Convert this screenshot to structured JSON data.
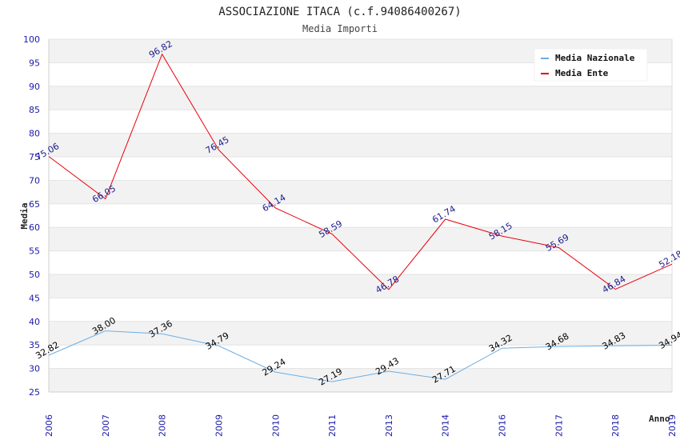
{
  "chart_data": {
    "type": "line",
    "title": "ASSOCIAZIONE ITACA (c.f.94086400267)",
    "subtitle": "Media Importi",
    "ylabel": "Media",
    "xlabel": "Anno",
    "ylim": [
      25,
      100
    ],
    "yticks": [
      25,
      30,
      35,
      40,
      45,
      50,
      55,
      60,
      65,
      70,
      75,
      80,
      85,
      90,
      95,
      100
    ],
    "categories": [
      "2006",
      "2007",
      "2008",
      "2009",
      "2010",
      "2011",
      "2013",
      "2014",
      "2016",
      "2017",
      "2018",
      "2019"
    ],
    "grid": "horizontal alternating bands",
    "legend_position": "top-right",
    "series": [
      {
        "name": "Media Nazionale",
        "color": "#6aaee6",
        "label_color": "#000000",
        "values": [
          32.82,
          38.0,
          37.36,
          34.79,
          29.24,
          27.19,
          29.43,
          27.71,
          34.32,
          34.68,
          34.83,
          34.94
        ],
        "labels": [
          "32.82",
          "38.00",
          "37.36",
          "34.79",
          "29.24",
          "27.19",
          "29.43",
          "27.71",
          "34.32",
          "34.68",
          "34.83",
          "34.94"
        ]
      },
      {
        "name": "Media Ente",
        "color": "#e8000b",
        "label_color": "#1a1a8c",
        "values": [
          75.06,
          66.05,
          96.82,
          76.45,
          64.14,
          58.59,
          46.78,
          61.74,
          58.15,
          55.69,
          46.84,
          52.18
        ],
        "labels": [
          "75.06",
          "66.05",
          "96.82",
          "76.45",
          "64.14",
          "58.59",
          "46.78",
          "61.74",
          "58.15",
          "55.69",
          "46.84",
          "52.18"
        ]
      }
    ]
  }
}
